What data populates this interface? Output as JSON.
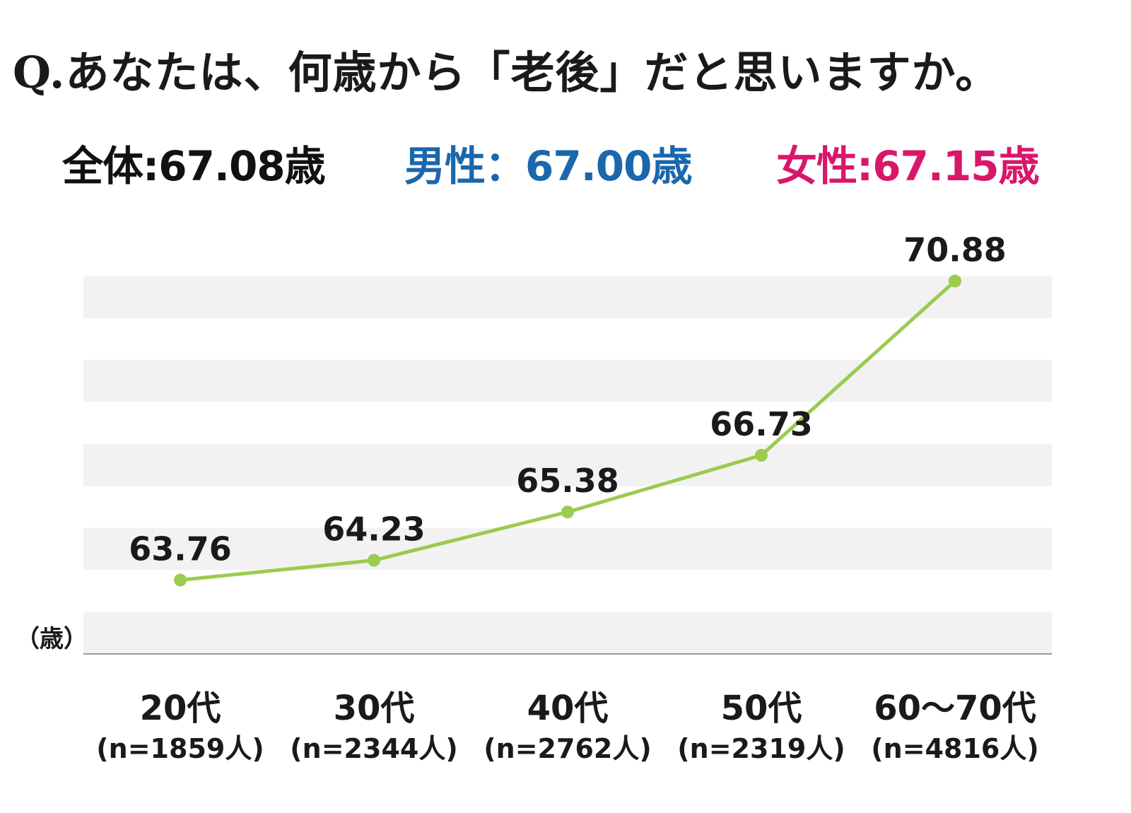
{
  "title": "Q.あなたは、何歳から「老後」だと思いますか。",
  "summary": {
    "total": {
      "text": "全体:67.08歳",
      "color": "#111111"
    },
    "male": {
      "text": "男性：67.00歳",
      "color": "#1a67ac"
    },
    "female": {
      "text": "女性:67.15歳",
      "color": "#d9176a"
    }
  },
  "chart_data": {
    "type": "line",
    "unit_label": "（歳）",
    "categories": [
      "20代",
      "30代",
      "40代",
      "50代",
      "60〜70代"
    ],
    "sample_sizes": [
      "(n=1859人)",
      "(n=2344人)",
      "(n=2762人)",
      "(n=2319人)",
      "(n=4816人)"
    ],
    "values": [
      63.76,
      64.23,
      65.38,
      66.73,
      70.88
    ],
    "value_labels": [
      "63.76",
      "64.23",
      "65.38",
      "66.73",
      "70.88"
    ],
    "ylim": [
      62.0,
      72.0
    ],
    "line_color": "#9bcb4f",
    "band_color": "#f2f2f2",
    "grid": "alternating-bands"
  }
}
